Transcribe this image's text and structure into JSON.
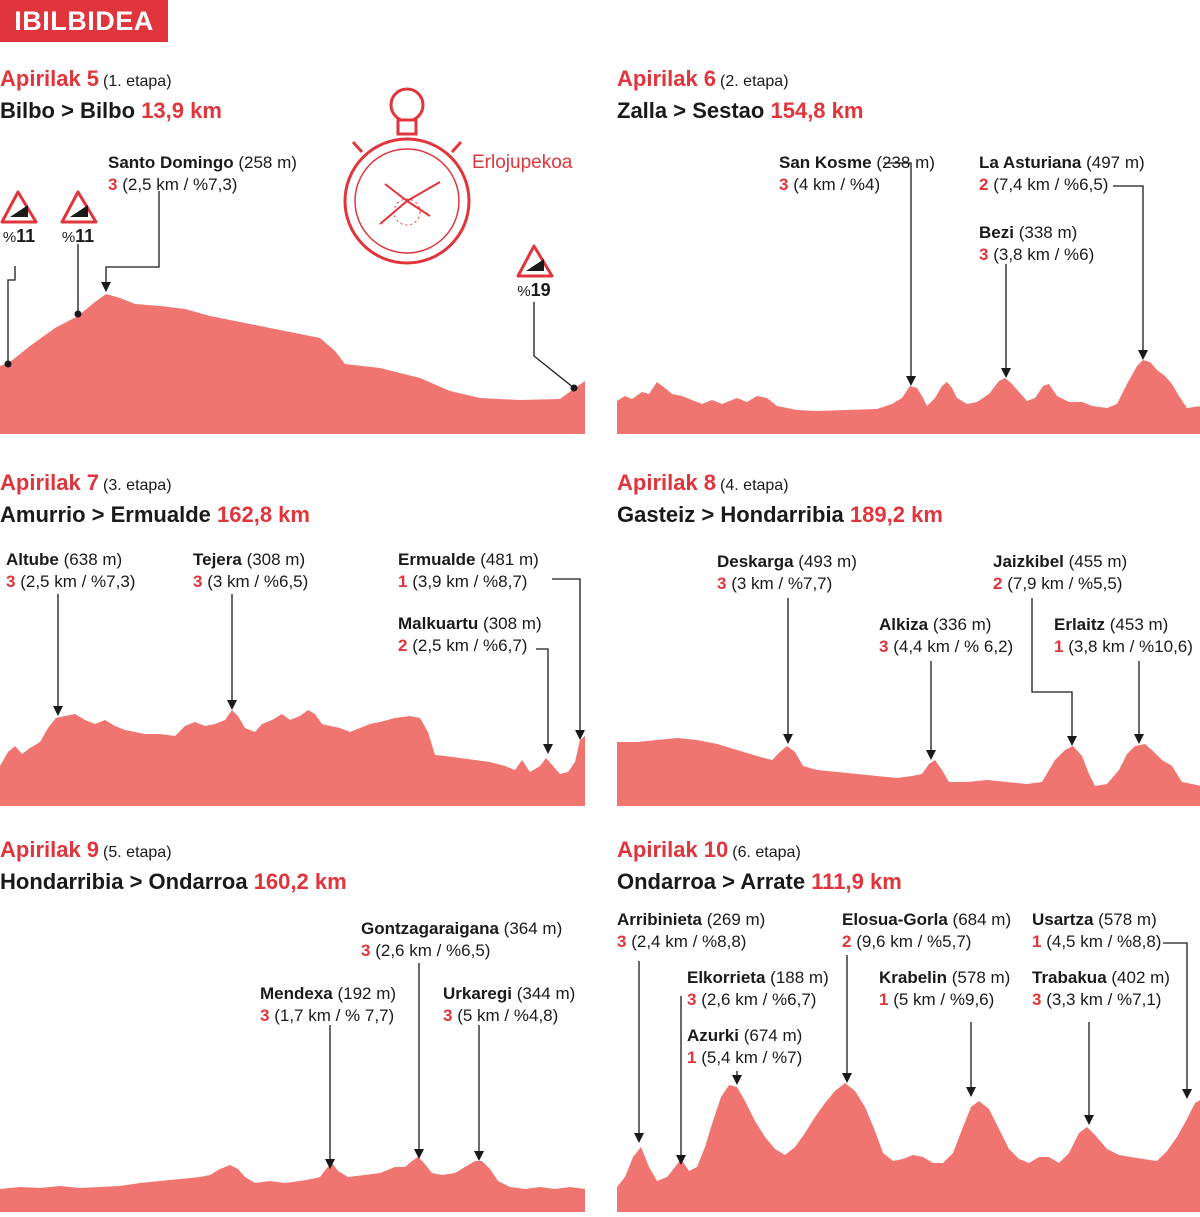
{
  "header": {
    "badge": "IBILBIDEA"
  },
  "colors": {
    "accent": "#e0353c",
    "profile_fill": "#f07470"
  },
  "stages": [
    {
      "date": "Apirilak 5",
      "etapa": "(1. etapa)",
      "route": "Bilbo > Bilbo",
      "distance": "13,9 km",
      "timetrial_label": "Erlojupekoa",
      "signs": [
        {
          "pct": "%",
          "val": "11"
        },
        {
          "pct": "%",
          "val": "11"
        },
        {
          "pct": "%",
          "val": "19"
        }
      ],
      "climbs": [
        {
          "name": "Santo Domingo",
          "alt": "(258 m)",
          "cat": "3",
          "info": "(2,5 km / %7,3)"
        }
      ]
    },
    {
      "date": "Apirilak 6",
      "etapa": "(2. etapa)",
      "route": "Zalla > Sestao",
      "distance": "154,8 km",
      "climbs": [
        {
          "name": "San Kosme",
          "alt": "(238 m)",
          "cat": "3",
          "info": "(4 km / %4)"
        },
        {
          "name": "La Asturiana",
          "alt": "(497 m)",
          "cat": "2",
          "info": "(7,4 km / %6,5)"
        },
        {
          "name": "Bezi",
          "alt": "(338 m)",
          "cat": "3",
          "info": "(3,8 km / %6)"
        }
      ]
    },
    {
      "date": "Apirilak 7",
      "etapa": "(3. etapa)",
      "route": "Amurrio > Ermualde",
      "distance": "162,8 km",
      "climbs": [
        {
          "name": "Altube",
          "alt": "(638 m)",
          "cat": "3",
          "info": "(2,5 km / %7,3)"
        },
        {
          "name": "Tejera",
          "alt": "(308 m)",
          "cat": "3",
          "info": "(3 km / %6,5)"
        },
        {
          "name": "Ermualde",
          "alt": "(481 m)",
          "cat": "1",
          "info": "(3,9 km / %8,7)"
        },
        {
          "name": "Malkuartu",
          "alt": "(308 m)",
          "cat": "2",
          "info": "(2,5 km / %6,7)"
        }
      ]
    },
    {
      "date": "Apirilak 8",
      "etapa": "(4. etapa)",
      "route": "Gasteiz > Hondarribia",
      "distance": "189,2 km",
      "climbs": [
        {
          "name": "Deskarga",
          "alt": "(493 m)",
          "cat": "3",
          "info": "(3 km / %7,7)"
        },
        {
          "name": "Jaizkibel",
          "alt": "(455 m)",
          "cat": "2",
          "info": "(7,9 km / %5,5)"
        },
        {
          "name": "Alkiza",
          "alt": "(336 m)",
          "cat": "3",
          "info": "(4,4 km / % 6,2)"
        },
        {
          "name": "Erlaitz",
          "alt": "(453 m)",
          "cat": "1",
          "info": "(3,8 km / %10,6)"
        }
      ]
    },
    {
      "date": "Apirilak 9",
      "etapa": "(5. etapa)",
      "route": "Hondarribia > Ondarroa",
      "distance": "160,2 km",
      "climbs": [
        {
          "name": "Gontzagaraigana",
          "alt": "(364 m)",
          "cat": "3",
          "info": "(2,6 km / %6,5)"
        },
        {
          "name": "Mendexa",
          "alt": "(192 m)",
          "cat": "3",
          "info": "(1,7 km / % 7,7)"
        },
        {
          "name": "Urkaregi",
          "alt": "(344 m)",
          "cat": "3",
          "info": "(5 km / %4,8)"
        }
      ]
    },
    {
      "date": "Apirilak 10",
      "etapa": "(6. etapa)",
      "route": "Ondarroa > Arrate",
      "distance": "111,9 km",
      "climbs": [
        {
          "name": "Arribinieta",
          "alt": "(269 m)",
          "cat": "3",
          "info": "(2,4 km / %8,8)"
        },
        {
          "name": "Elosua-Gorla",
          "alt": "(684 m)",
          "cat": "2",
          "info": "(9,6 km / %5,7)"
        },
        {
          "name": "Usartza",
          "alt": "(578 m)",
          "cat": "1",
          "info": "(4,5 km / %8,8)"
        },
        {
          "name": "Elkorrieta",
          "alt": "(188 m)",
          "cat": "3",
          "info": "(2,6 km / %6,7)"
        },
        {
          "name": "Krabelin",
          "alt": "(578 m)",
          "cat": "1",
          "info": "(5 km / %9,6)"
        },
        {
          "name": "Trabakua",
          "alt": "(402 m)",
          "cat": "3",
          "info": "(3,3 km / %7,1)"
        },
        {
          "name": "Azurki",
          "alt": "(674 m)",
          "cat": "1",
          "info": "(5,4 km / %7)"
        }
      ]
    }
  ]
}
